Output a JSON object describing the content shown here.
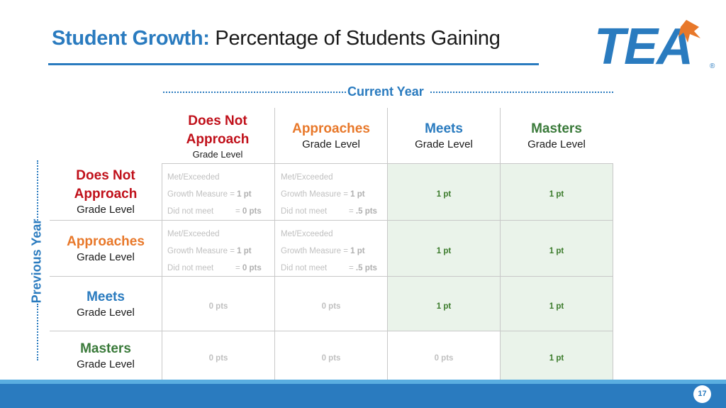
{
  "title": {
    "bold": "Student Growth:",
    "rest": "Percentage of Students Gaining"
  },
  "logo": {
    "text": "TEA",
    "registered": "®"
  },
  "current_year_label": "Current Year",
  "previous_year_label": "Previous Year",
  "colors": {
    "accent": "#2a7bbf",
    "does_not_approach": "#c0101a",
    "approaches": "#e8782a",
    "meets": "#2a7bbf",
    "masters": "#3a7a3a",
    "highlight": "#eaf3ea"
  },
  "columns": [
    {
      "line1": "Does Not",
      "line2": "Approach",
      "sub": "Grade Level"
    },
    {
      "name": "Approaches",
      "sub": "Grade Level"
    },
    {
      "name": "Meets",
      "sub": "Grade Level"
    },
    {
      "name": "Masters",
      "sub": "Grade Level"
    }
  ],
  "rows": [
    {
      "line1": "Does Not",
      "line2": "Approach",
      "sub": "Grade Level"
    },
    {
      "name": "Approaches",
      "sub": "Grade Level"
    },
    {
      "name": "Meets",
      "sub": "Grade Level"
    },
    {
      "name": "Masters",
      "sub": "Grade Level"
    }
  ],
  "cells": {
    "r1c1": {
      "l1": "Met/Exceeded",
      "l2": "Growth Measure = ",
      "l2b": "1 pt",
      "l3": "Did not meet",
      "eq": "= ",
      "l3b": "0 pts"
    },
    "r1c2": {
      "l1": "Met/Exceeded",
      "l2": "Growth Measure = ",
      "l2b": "1 pt",
      "l3": "Did not meet",
      "eq": "= ",
      "l3b": ".5 pts"
    },
    "r1c3": "1 pt",
    "r1c4": "1 pt",
    "r2c1": {
      "l1": "Met/Exceeded",
      "l2": "Growth Measure = ",
      "l2b": "1 pt",
      "l3": "Did not meet",
      "eq": "= ",
      "l3b": "0 pts"
    },
    "r2c2": {
      "l1": "Met/Exceeded",
      "l2": "Growth Measure = ",
      "l2b": "1 pt",
      "l3": "Did not meet",
      "eq": "= ",
      "l3b": ".5 pts"
    },
    "r2c3": "1 pt",
    "r2c4": "1 pt",
    "r3c1": "0 pts",
    "r3c2": "0 pts",
    "r3c3": "1 pt",
    "r3c4": "1 pt",
    "r4c1": "0 pts",
    "r4c2": "0 pts",
    "r4c3": "0 pts",
    "r4c4": "1 pt"
  },
  "page_number": "17"
}
